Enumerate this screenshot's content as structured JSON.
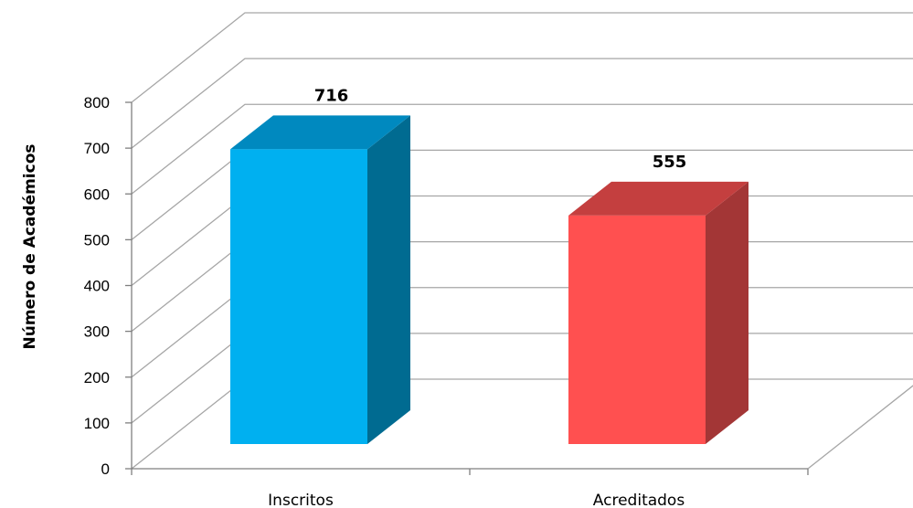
{
  "chart_data": {
    "type": "bar",
    "title": "",
    "xlabel": "",
    "ylabel": "Número de Académicos",
    "categories": [
      "Inscritos",
      "Acreditados"
    ],
    "values": [
      716,
      555
    ],
    "data_labels": [
      "716",
      "555"
    ],
    "ylim": [
      0,
      800
    ],
    "yticks": [
      0,
      100,
      200,
      300,
      400,
      500,
      600,
      700,
      800
    ],
    "ytick_labels": [
      "0",
      "100",
      "200",
      "300",
      "400",
      "500",
      "600",
      "700",
      "800"
    ],
    "grid": true,
    "legend": "none",
    "three_d": true,
    "colors": {
      "front": [
        "#00B0F0",
        "#FF5050"
      ],
      "side": [
        "#006B91",
        "#A33636"
      ],
      "top": [
        "#0089BF",
        "#C43F3F"
      ],
      "grid": "#A6A6A6",
      "axis": "#7F7F7F"
    }
  }
}
